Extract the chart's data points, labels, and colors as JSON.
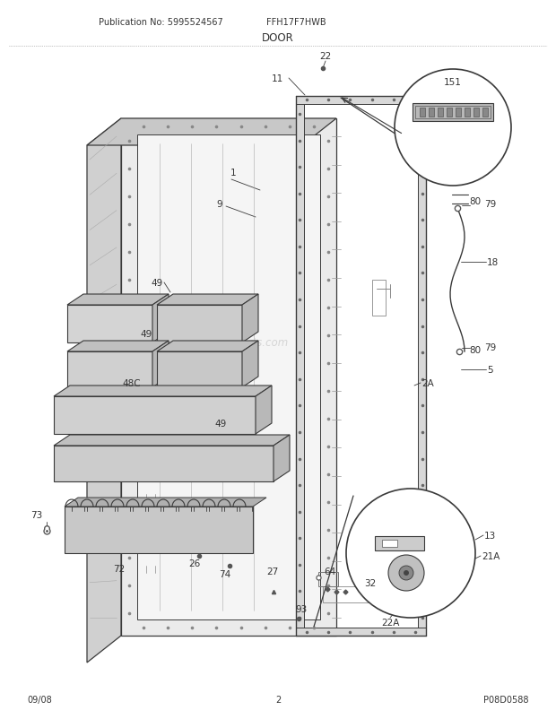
{
  "title": "DOOR",
  "model": "FFH17F7HWB",
  "publication": "Publication No: 5995524567",
  "page": "2",
  "date": "09/08",
  "diagram_code": "P08D0588",
  "bg_color": "#ffffff",
  "line_color": "#3a3a3a",
  "text_color": "#333333",
  "gray_fill": "#e0e0e0",
  "dark_gray": "#b0b0b0",
  "light_gray": "#f0f0f0",
  "shelf_fill": "#d8d8d8",
  "shelf_top": "#c0c0c0"
}
